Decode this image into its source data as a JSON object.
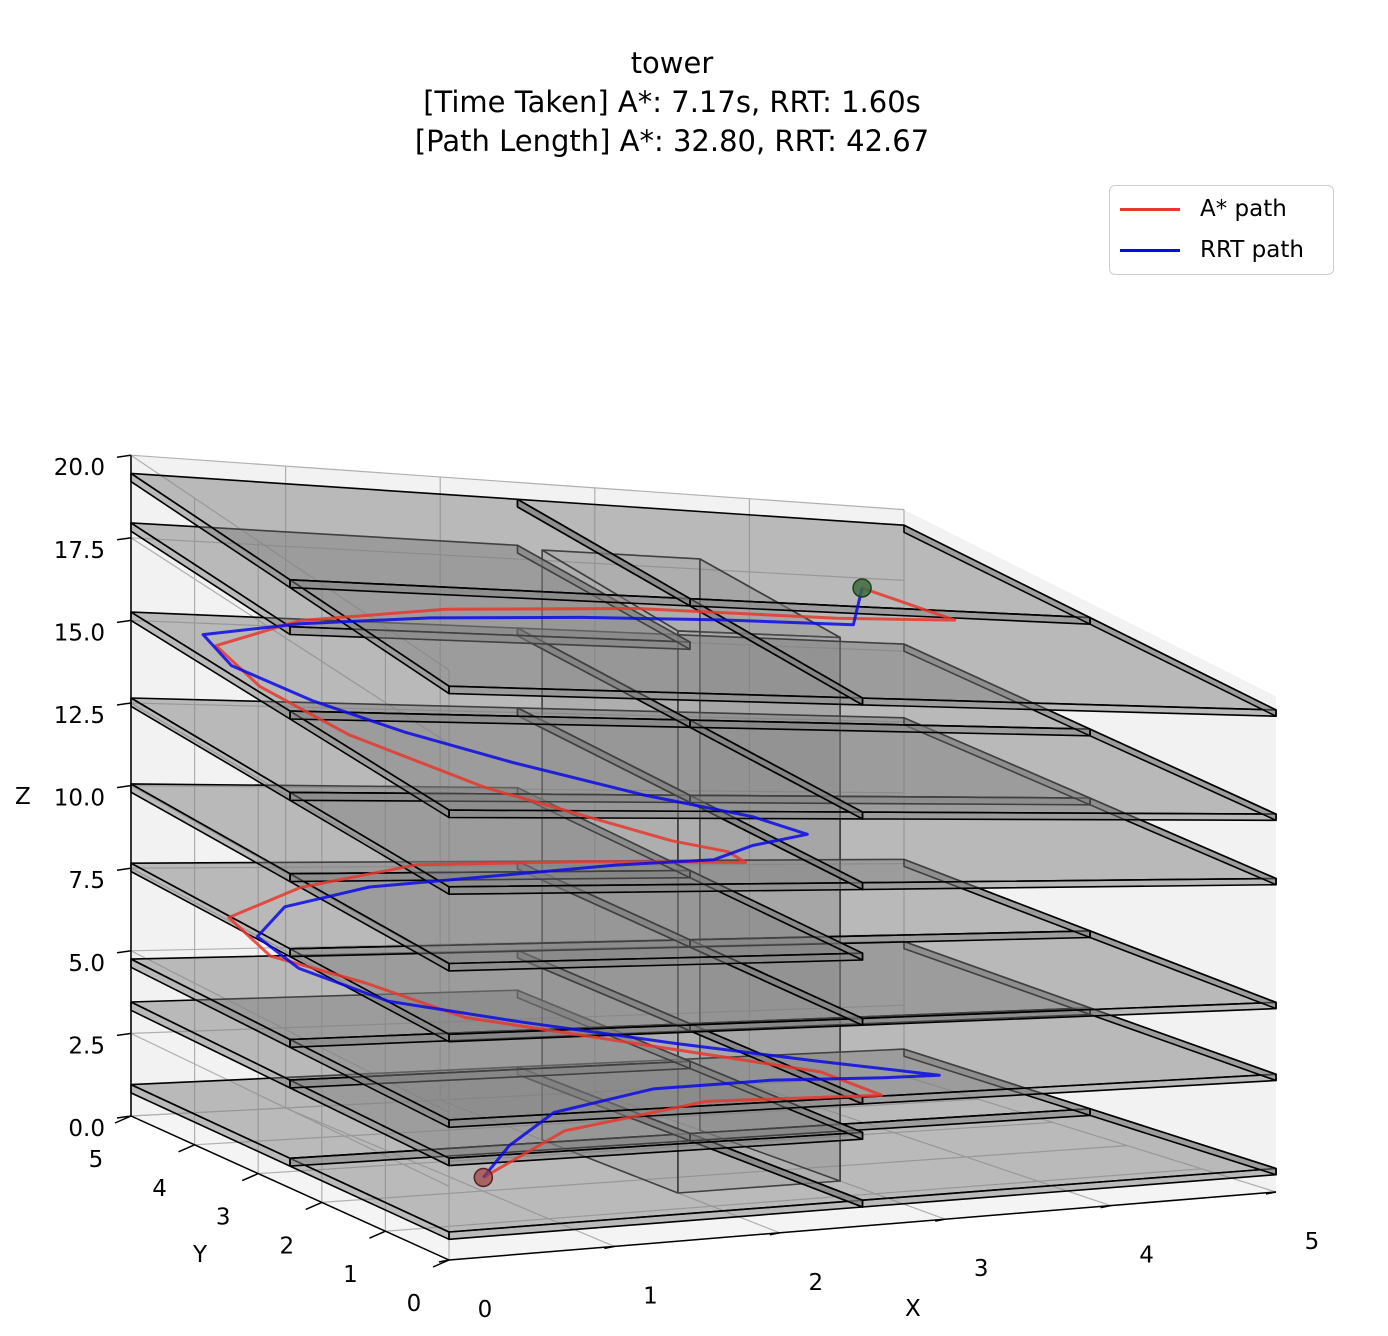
{
  "chart_data": {
    "type": "line",
    "title": "tower",
    "subtitle_lines": [
      "[Time Taken] A*: 7.17s, RRT: 1.60s",
      "[Path Length] A*: 32.80, RRT: 42.67"
    ],
    "xlabel": "X",
    "ylabel": "Y",
    "zlabel": "Z",
    "xlim": [
      0,
      5
    ],
    "ylim": [
      0,
      5
    ],
    "zlim": [
      0,
      20
    ],
    "x_ticks": [
      "0",
      "1",
      "2",
      "3",
      "4",
      "5"
    ],
    "y_ticks": [
      "0",
      "1",
      "2",
      "3",
      "4",
      "5"
    ],
    "z_ticks": [
      "0.0",
      "2.5",
      "5.0",
      "7.5",
      "10.0",
      "12.5",
      "15.0",
      "17.5",
      "20.0"
    ],
    "grid": true,
    "legend_position": "top-right",
    "projection": "3d",
    "colors": {
      "astar": "#e8372b",
      "rrt": "#0a0ae6",
      "obstacle": "#808080"
    },
    "series": [
      {
        "name": "A* path",
        "color": "#e8372b",
        "points": [
          [
            0.8,
            1.5,
            1.0
          ],
          [
            1.3,
            1.5,
            2.4
          ],
          [
            2.3,
            1.8,
            2.8
          ],
          [
            3.3,
            1.6,
            2.9
          ],
          [
            3.1,
            2.0,
            3.4
          ],
          [
            2.2,
            2.5,
            4.1
          ],
          [
            1.3,
            3.0,
            4.7
          ],
          [
            0.8,
            3.3,
            5.6
          ],
          [
            0.4,
            3.8,
            6.0
          ],
          [
            0.3,
            4.2,
            6.8
          ],
          [
            0.8,
            4.3,
            7.6
          ],
          [
            1.5,
            4.2,
            8.4
          ],
          [
            2.4,
            3.8,
            8.9
          ],
          [
            3.2,
            3.3,
            9.4
          ],
          [
            3.0,
            3.1,
            10.0
          ],
          [
            2.6,
            3.0,
            10.5
          ],
          [
            1.6,
            3.4,
            11.8
          ],
          [
            0.9,
            3.8,
            13.0
          ],
          [
            0.5,
            4.2,
            14.0
          ],
          [
            0.3,
            4.4,
            15.0
          ],
          [
            0.8,
            4.3,
            16.0
          ],
          [
            1.6,
            4.0,
            16.9
          ],
          [
            2.6,
            3.5,
            17.8
          ],
          [
            3.6,
            2.9,
            18.5
          ],
          [
            4.2,
            2.6,
            19.0
          ],
          [
            3.8,
            3.0,
            19.5
          ]
        ]
      },
      {
        "name": "RRT path",
        "color": "#0a0ae6",
        "points": [
          [
            0.8,
            1.5,
            1.0
          ],
          [
            1.0,
            1.6,
            1.9
          ],
          [
            1.4,
            1.9,
            2.6
          ],
          [
            2.1,
            2.1,
            3.0
          ],
          [
            2.8,
            2.0,
            3.2
          ],
          [
            3.4,
            1.8,
            3.3
          ],
          [
            3.7,
            1.7,
            3.4
          ],
          [
            3.1,
            2.1,
            3.7
          ],
          [
            2.4,
            2.5,
            4.1
          ],
          [
            1.6,
            2.9,
            4.6
          ],
          [
            0.9,
            3.2,
            5.1
          ],
          [
            0.5,
            3.6,
            5.8
          ],
          [
            0.4,
            4.0,
            6.4
          ],
          [
            0.7,
            4.3,
            7.0
          ],
          [
            1.2,
            4.2,
            7.7
          ],
          [
            2.0,
            3.9,
            8.4
          ],
          [
            2.5,
            3.6,
            9.0
          ],
          [
            3.0,
            3.3,
            9.5
          ],
          [
            3.2,
            3.2,
            10.1
          ],
          [
            3.5,
            3.1,
            10.6
          ],
          [
            3.2,
            3.2,
            11.1
          ],
          [
            2.6,
            3.4,
            11.6
          ],
          [
            1.9,
            3.7,
            12.3
          ],
          [
            1.3,
            3.9,
            13.0
          ],
          [
            0.8,
            4.1,
            13.7
          ],
          [
            0.4,
            4.4,
            14.4
          ],
          [
            0.3,
            4.6,
            15.1
          ],
          [
            0.8,
            4.3,
            15.9
          ],
          [
            1.5,
            4.0,
            16.6
          ],
          [
            2.3,
            3.6,
            17.3
          ],
          [
            3.0,
            3.2,
            17.9
          ],
          [
            3.7,
            2.9,
            18.3
          ],
          [
            3.8,
            3.0,
            19.5
          ]
        ]
      }
    ],
    "start_point": [
      0.8,
      1.5,
      1.0
    ],
    "goal_point": [
      3.8,
      3.0,
      19.5
    ]
  }
}
